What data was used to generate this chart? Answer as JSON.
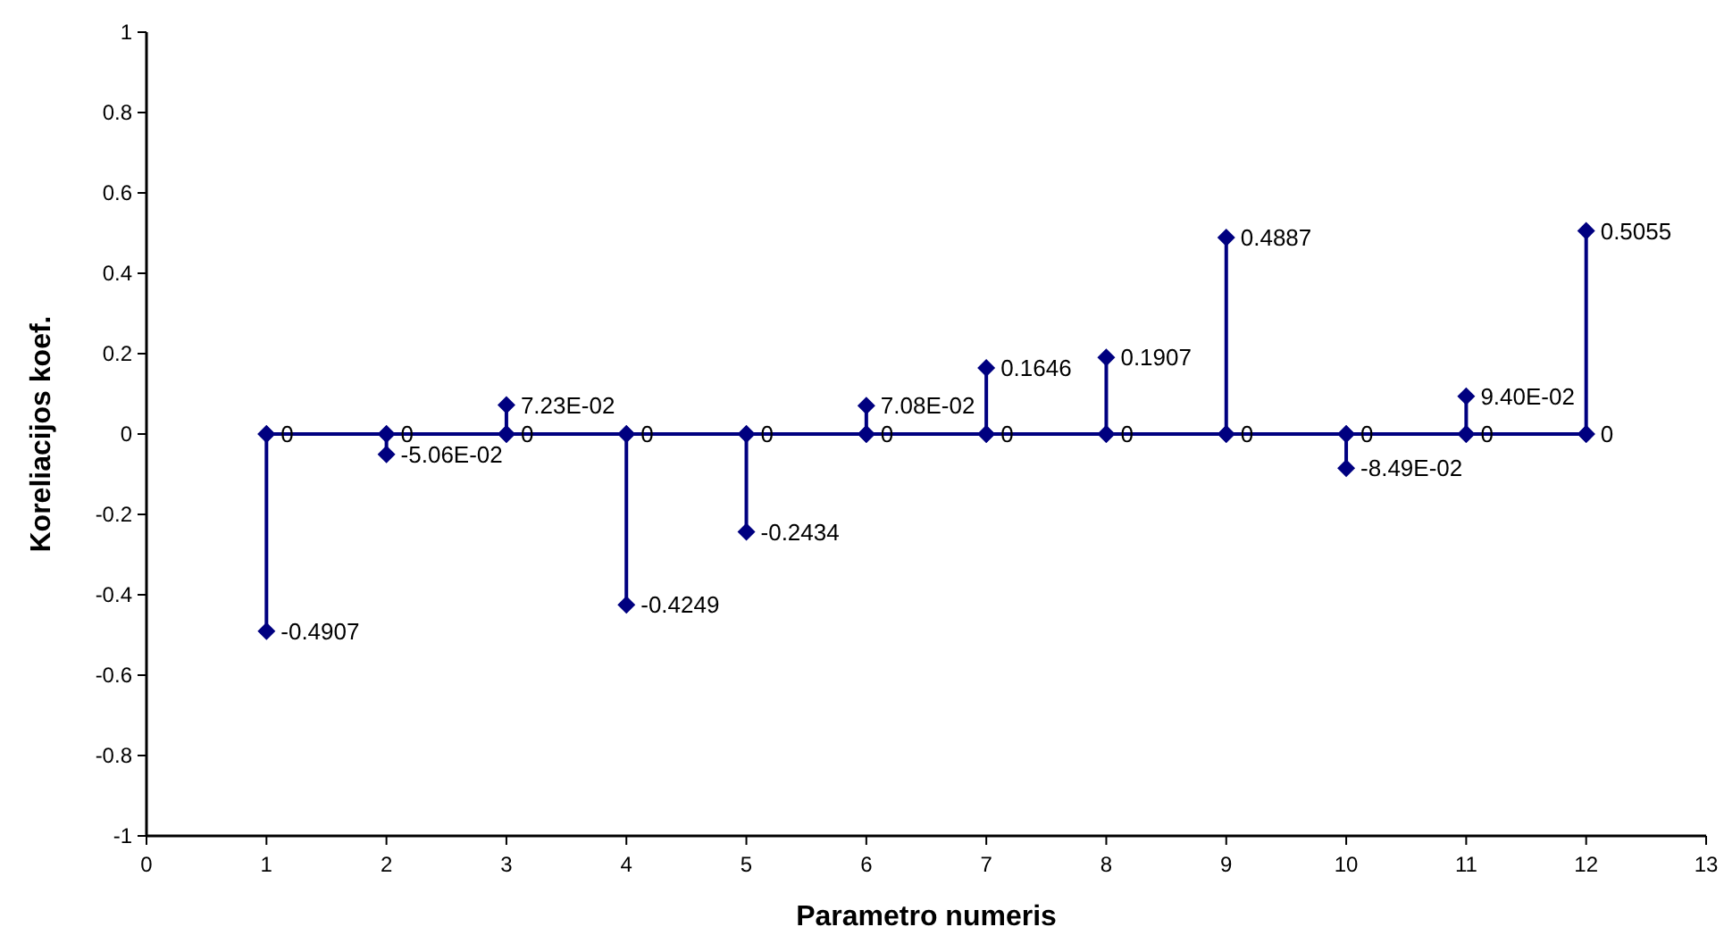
{
  "chart_data": {
    "type": "line",
    "xlabel": "Parametro numeris",
    "ylabel": "Koreliacijos koef.",
    "color": "#000080",
    "marker": "diamond",
    "x": [
      1,
      1,
      1,
      2,
      2,
      2,
      3,
      3,
      3,
      4,
      4,
      4,
      5,
      5,
      5,
      6,
      6,
      6,
      7,
      7,
      7,
      8,
      8,
      8,
      9,
      9,
      9,
      10,
      10,
      10,
      11,
      11,
      11,
      12,
      12,
      12
    ],
    "values": [
      0,
      -0.4907,
      0,
      0,
      -0.0506,
      0,
      0,
      0.0723,
      0,
      0,
      -0.4249,
      0,
      0,
      -0.2434,
      0,
      0,
      0.0708,
      0,
      0,
      0.1646,
      0,
      0,
      0.1907,
      0,
      0,
      0.4887,
      0,
      0,
      -0.0849,
      0,
      0,
      0.094,
      0,
      0,
      0.5055,
      0
    ],
    "value_labels": [
      "0",
      "-0.4907",
      null,
      "0",
      "-5.06E-02",
      null,
      "0",
      "7.23E-02",
      null,
      "0",
      "-0.4249",
      null,
      "0",
      "-0.2434",
      null,
      "0",
      "7.08E-02",
      null,
      "0",
      "0.1646",
      null,
      "0",
      "0.1907",
      null,
      "0",
      "0.4887",
      null,
      "0",
      "-8.49E-02",
      null,
      "0",
      "9.40E-02",
      null,
      "0",
      "0.5055",
      null
    ],
    "xlim": [
      0,
      13
    ],
    "xticks": [
      0,
      1,
      2,
      3,
      4,
      5,
      6,
      7,
      8,
      9,
      10,
      11,
      12,
      13
    ],
    "ylim": [
      -1,
      1
    ],
    "yticks": [
      -1,
      -0.8,
      -0.6,
      -0.4,
      -0.2,
      0,
      0.2,
      0.4,
      0.6,
      0.8,
      1
    ]
  }
}
